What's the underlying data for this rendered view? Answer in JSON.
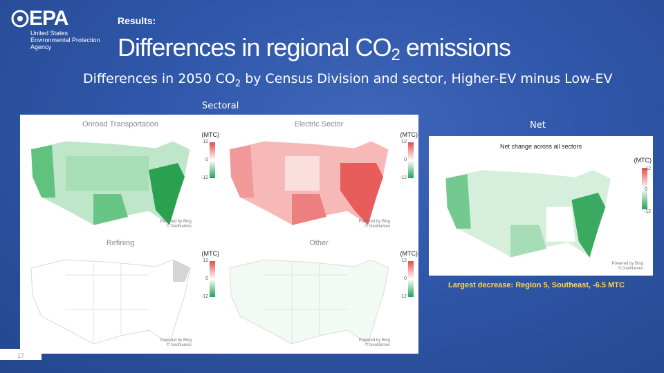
{
  "logo": {
    "wordmark": "EPA",
    "agency": "United States\nEnvironmental Protection\nAgency"
  },
  "header": {
    "kicker": "Results:",
    "title_pre": "Differences in regional CO",
    "title_sub": "2",
    "title_post": " emissions"
  },
  "subtitle": {
    "pre": "Differences in 2050 CO",
    "sub": "2",
    "post": " by Census Division and sector, Higher-EV minus Low-EV"
  },
  "sectoral_label": "Sectoral",
  "panels": [
    {
      "title": "Onroad Transportation",
      "unit": "(MTC)",
      "tick_top": "12",
      "tick_mid": "0",
      "tick_bot": "-12",
      "credit": "Powered by Bing\n© GeoNames"
    },
    {
      "title": "Electric Sector",
      "unit": "(MTC)",
      "tick_top": "12",
      "tick_mid": "0",
      "tick_bot": "-12",
      "credit": "Powered by Bing\n© GeoNames"
    },
    {
      "title": "Refining",
      "unit": "(MTC)",
      "tick_top": "12",
      "tick_mid": "0",
      "tick_bot": "-12",
      "credit": "Powered by Bing\n© GeoNames"
    },
    {
      "title": "Other",
      "unit": "(MTC)",
      "tick_top": "12",
      "tick_mid": "0",
      "tick_bot": "-12",
      "credit": "Powered by Bing\n© GeoNames"
    }
  ],
  "net": {
    "label": "Net",
    "caption": "Net change across all sectors",
    "unit": "(MTC)",
    "tick_top": "12",
    "tick_mid": "0",
    "tick_bot": "-12",
    "credit": "Powered by Bing\n© GeoNames"
  },
  "callout": "Largest decrease: Region 5, Southeast, -6.5 MTC",
  "page_number": "17",
  "colors": {
    "background": "#2f56a8",
    "callout": "#ffd84a",
    "increase": "#e64a4a",
    "decrease": "#22a353"
  }
}
